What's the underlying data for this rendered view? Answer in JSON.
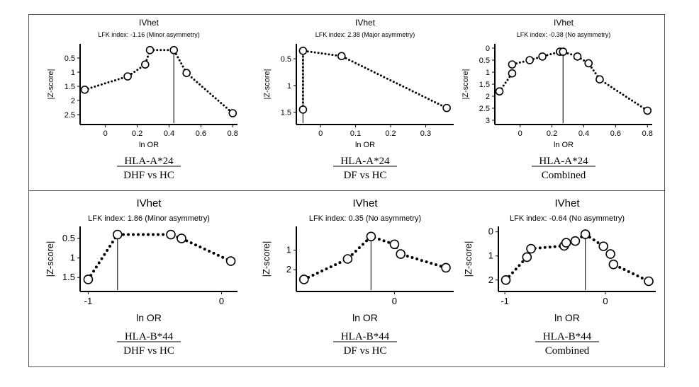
{
  "chart_data": [
    {
      "type": "scatter",
      "title": "IVhet",
      "subtitle": "LFK index: -1.16 (Minor asymmetry)",
      "xlabel": "ln OR",
      "ylabel": "|Z-score|",
      "caption": [
        "HLA-A*24",
        "DHF vs HC"
      ],
      "xlim": [
        -0.15,
        0.83
      ],
      "ylim": [
        0.15,
        2.7
      ],
      "y_inverted": true,
      "xticks": [
        0,
        0.2,
        0.4,
        0.6,
        0.8
      ],
      "yticks": [
        0.5,
        1,
        1.5,
        2,
        2.5
      ],
      "points": [
        [
          -0.13,
          1.62
        ],
        [
          0.14,
          1.15
        ],
        [
          0.25,
          0.73
        ],
        [
          0.28,
          0.22
        ],
        [
          0.43,
          0.22
        ],
        [
          0.51,
          1.03
        ],
        [
          0.8,
          2.45
        ]
      ],
      "reference_x": 0.43
    },
    {
      "type": "scatter",
      "title": "IVhet",
      "subtitle": "LFK index: 2.38 (Major asymmetry)",
      "xlabel": "ln OR",
      "ylabel": "|Z-score|",
      "caption": [
        "HLA-A*24",
        "DF vs HC"
      ],
      "xlim": [
        -0.065,
        0.38
      ],
      "ylim": [
        0.3,
        1.65
      ],
      "y_inverted": true,
      "xticks": [
        0,
        0.1,
        0.2,
        0.3
      ],
      "yticks": [
        0.5,
        1,
        1.5
      ],
      "points": [
        [
          -0.05,
          1.45
        ],
        [
          -0.05,
          0.35
        ],
        [
          0.06,
          0.45
        ],
        [
          0.36,
          1.42
        ]
      ],
      "reference_x": -0.05
    },
    {
      "type": "scatter",
      "title": "IVhet",
      "subtitle": "LFK index: -0.38 (No asymmetry)",
      "xlabel": "ln OR",
      "ylabel": "|Z-score|",
      "caption": [
        "HLA-A*24",
        "Combined"
      ],
      "xlim": [
        -0.15,
        0.83
      ],
      "ylim": [
        0,
        3
      ],
      "y_inverted": true,
      "xticks": [
        0,
        0.2,
        0.4,
        0.6,
        0.8
      ],
      "yticks": [
        0,
        0.5,
        1,
        1.5,
        2,
        2.5,
        3
      ],
      "points": [
        [
          -0.13,
          1.8
        ],
        [
          -0.05,
          1.05
        ],
        [
          -0.05,
          0.68
        ],
        [
          0.06,
          0.5
        ],
        [
          0.14,
          0.35
        ],
        [
          0.25,
          0.15
        ],
        [
          0.27,
          0.15
        ],
        [
          0.36,
          0.35
        ],
        [
          0.43,
          0.63
        ],
        [
          0.5,
          1.3
        ],
        [
          0.8,
          2.6
        ]
      ],
      "reference_x": 0.27
    },
    {
      "type": "scatter",
      "title": "IVhet",
      "subtitle": "LFK index: 1.86 (Minor asymmetry)",
      "xlabel": "ln OR",
      "ylabel": "|Z-score|",
      "caption": [
        "HLA-B*44",
        "DHF vs HC"
      ],
      "xlim": [
        -1.05,
        0.12
      ],
      "ylim": [
        0.3,
        1.75
      ],
      "y_inverted": true,
      "xticks": [
        -1,
        0
      ],
      "yticks": [
        0.5,
        1,
        1.5
      ],
      "points": [
        [
          -1.0,
          1.55
        ],
        [
          -0.78,
          0.4
        ],
        [
          -0.38,
          0.4
        ],
        [
          -0.3,
          0.5
        ],
        [
          0.07,
          1.08
        ]
      ],
      "reference_x": -0.78
    },
    {
      "type": "scatter",
      "title": "IVhet",
      "subtitle": "LFK index: 0.35 (No asymmetry)",
      "xlabel": "ln OR",
      "ylabel": "|Z-score|",
      "caption": [
        "HLA-B*44",
        "DF vs HC"
      ],
      "xlim": [
        -0.62,
        0.38
      ],
      "ylim": [
        0,
        2.9
      ],
      "y_inverted": true,
      "xticks": [
        0
      ],
      "yticks": [
        1,
        2
      ],
      "points": [
        [
          -0.58,
          2.5
        ],
        [
          -0.3,
          1.45
        ],
        [
          -0.15,
          0.3
        ],
        [
          0,
          0.7
        ],
        [
          0.04,
          1.2
        ],
        [
          0.33,
          1.9
        ]
      ],
      "reference_x": -0.15
    },
    {
      "type": "scatter",
      "title": "IVhet",
      "subtitle": "LFK index: -0.64 (No asymmetry)",
      "xlabel": "ln OR",
      "ylabel": "|Z-score|",
      "caption": [
        "HLA-B*44",
        "Combined"
      ],
      "xlim": [
        -1.05,
        0.5
      ],
      "ylim": [
        -0.05,
        2.3
      ],
      "y_inverted": true,
      "xticks": [
        -1,
        0
      ],
      "yticks": [
        0,
        1,
        2
      ],
      "points": [
        [
          -0.99,
          2.0
        ],
        [
          -0.78,
          1.05
        ],
        [
          -0.74,
          0.7
        ],
        [
          -0.41,
          0.58
        ],
        [
          -0.39,
          0.45
        ],
        [
          -0.3,
          0.38
        ],
        [
          -0.2,
          0.1
        ],
        [
          -0.02,
          0.6
        ],
        [
          0.05,
          0.92
        ],
        [
          0.08,
          1.35
        ],
        [
          0.43,
          2.05
        ]
      ],
      "reference_x": -0.2
    }
  ]
}
